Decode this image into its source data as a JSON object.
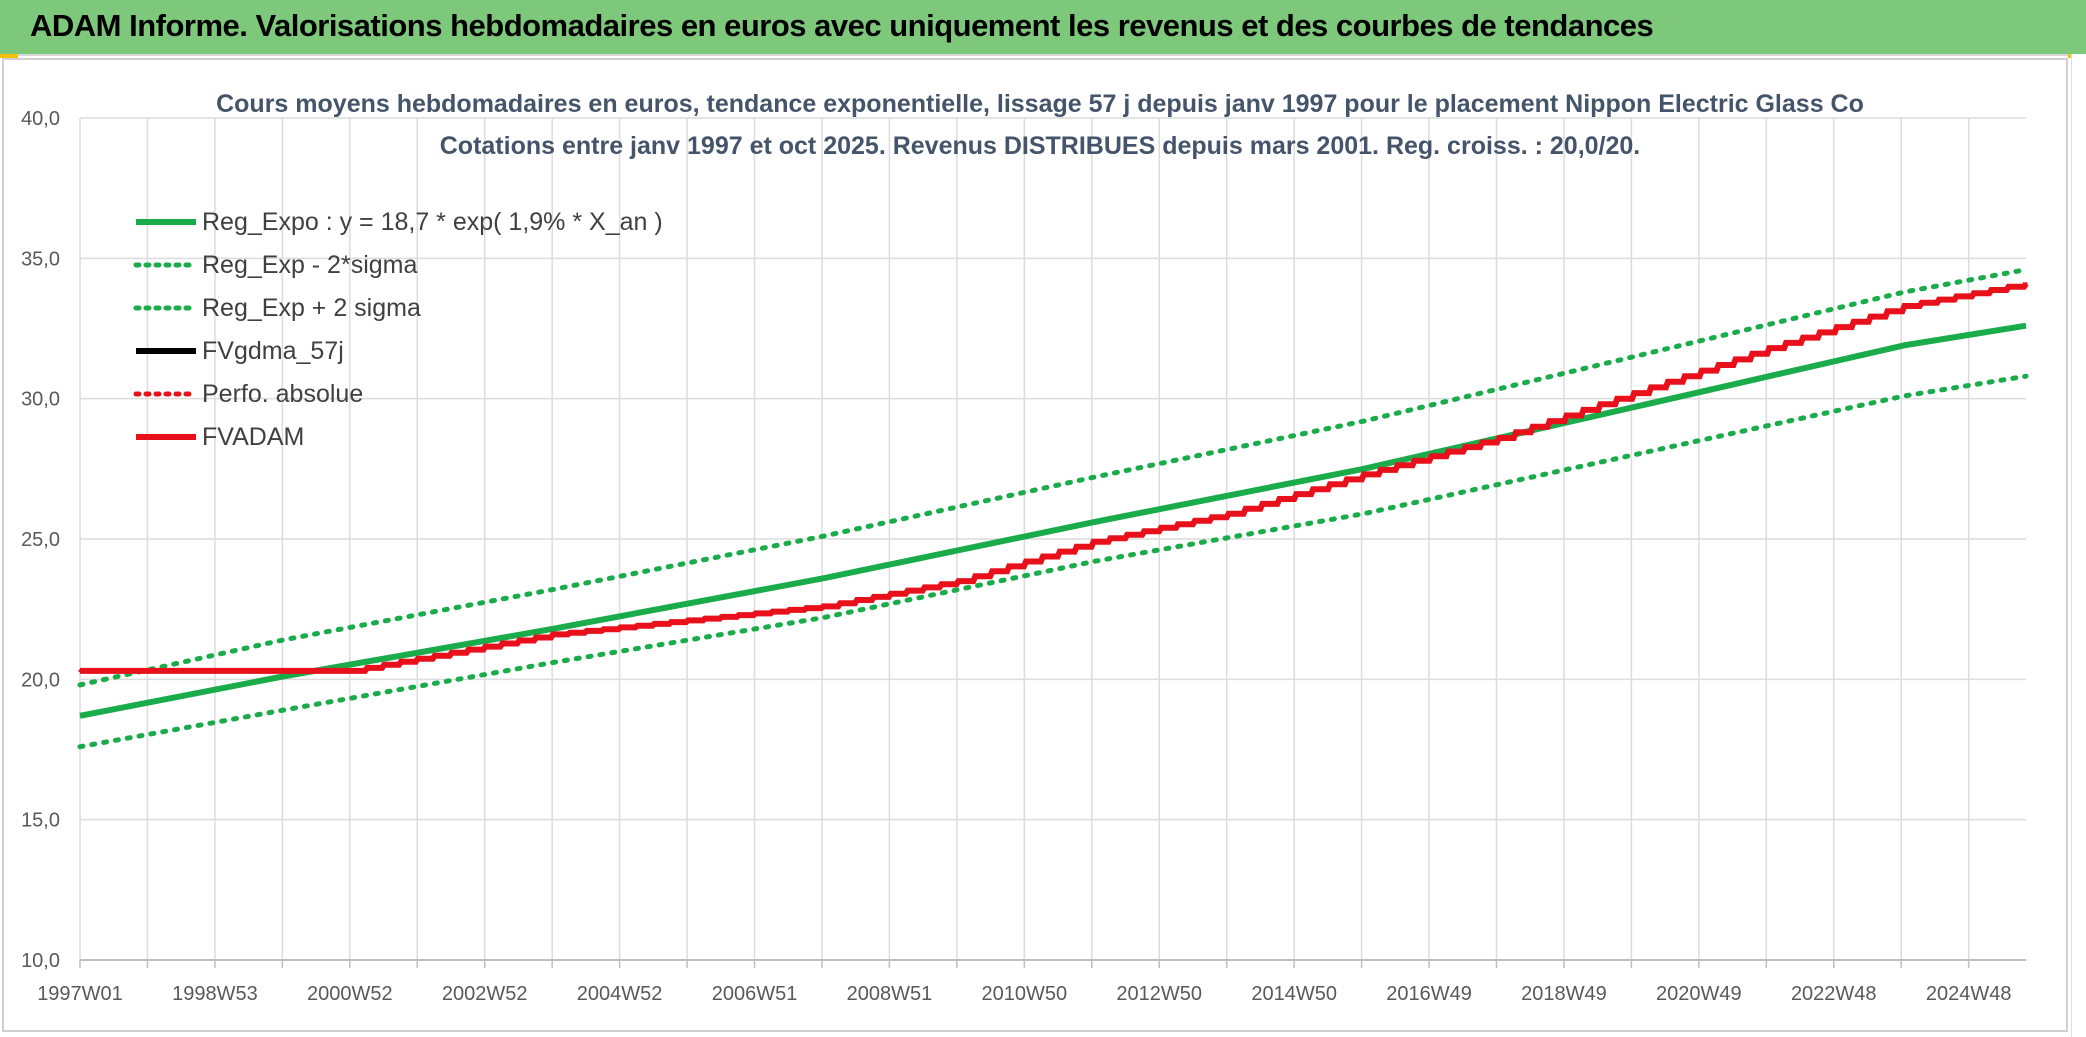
{
  "header": {
    "title": "ADAM Informe. Valorisations hebdomadaires en euros avec uniquement les revenus et des courbes de tendances"
  },
  "colors": {
    "header_bg": "#7dc87a",
    "green": "#1aab4b",
    "red": "#e8101a",
    "black": "#000000",
    "grid": "#dcdcdc",
    "title_text": "#44546a",
    "axis_text": "#595959"
  },
  "chart_data": {
    "type": "line",
    "title": "Cours moyens hebdomadaires en euros, tendance exponentielle, lissage 57 j depuis janv 1997 pour le placement Nippon Electric Glass Co",
    "subtitle": "Cotations entre janv 1997 et oct 2025. Revenus DISTRIBUES depuis mars 2001. Reg. croiss. : 20,0/20.",
    "xlabel": "",
    "ylabel": "",
    "ylim": [
      10,
      40
    ],
    "y_ticks": [
      "10,0",
      "15,0",
      "20,0",
      "25,0",
      "30,0",
      "35,0",
      "40,0"
    ],
    "x_range_years": [
      1997.0,
      2025.8
    ],
    "x_tick_labels": [
      "1997W01",
      "1998W53",
      "2000W52",
      "2002W52",
      "2004W52",
      "2006W51",
      "2008W51",
      "2010W50",
      "2012W50",
      "2014W50",
      "2016W49",
      "2018W49",
      "2020W49",
      "2022W48",
      "2024W48"
    ],
    "grid": true,
    "legend_position": "top-left",
    "legend": [
      {
        "label": "Reg_Expo : y = 18,7 * exp( 1,9% *  X_an )",
        "color": "#1aab4b",
        "style": "solid"
      },
      {
        "label": "Reg_Exp - 2*sigma",
        "color": "#1aab4b",
        "style": "dotted"
      },
      {
        "label": "Reg_Exp + 2 sigma",
        "color": "#1aab4b",
        "style": "dotted"
      },
      {
        "label": "FVgdma_57j",
        "color": "#000000",
        "style": "solid"
      },
      {
        "label": "Perfo. absolue",
        "color": "#e8101a",
        "style": "dotted"
      },
      {
        "label": "FVADAM",
        "color": "#e8101a",
        "style": "solid"
      }
    ],
    "series": [
      {
        "name": "Reg_Expo : y = 18,7 * exp( 1,9% *  X_an )",
        "x": [
          1997,
          2000,
          2004,
          2008,
          2012,
          2016,
          2020,
          2024,
          2025.8
        ],
        "y": [
          18.7,
          20.1,
          21.8,
          23.6,
          25.6,
          27.5,
          29.7,
          31.9,
          32.6
        ]
      },
      {
        "name": "Reg_Exp - 2*sigma",
        "x": [
          1997,
          2000,
          2004,
          2008,
          2012,
          2016,
          2020,
          2024,
          2025.8
        ],
        "y": [
          17.6,
          18.9,
          20.6,
          22.2,
          24.2,
          25.9,
          28.0,
          30.1,
          30.8
        ]
      },
      {
        "name": "Reg_Exp + 2 sigma",
        "x": [
          1997,
          2000,
          2004,
          2008,
          2012,
          2016,
          2020,
          2024,
          2025.8
        ],
        "y": [
          19.8,
          21.4,
          23.2,
          25.1,
          27.2,
          29.2,
          31.5,
          33.8,
          34.6
        ]
      },
      {
        "name": "FVgdma_57j",
        "x": [
          1997,
          2001.0,
          2004,
          2008,
          2010,
          2012,
          2014,
          2016,
          2018,
          2020,
          2022,
          2024,
          2025.8
        ],
        "y": [
          20.3,
          20.3,
          21.6,
          22.6,
          23.5,
          24.9,
          25.9,
          27.3,
          28.6,
          30.2,
          31.8,
          33.3,
          34.1
        ]
      },
      {
        "name": "Perfo. absolue",
        "x": [
          1997,
          2001.0,
          2004,
          2008,
          2010,
          2012,
          2014,
          2016,
          2018,
          2020,
          2022,
          2024,
          2025.8
        ],
        "y": [
          20.3,
          20.3,
          21.6,
          22.6,
          23.5,
          24.9,
          25.9,
          27.3,
          28.6,
          30.2,
          31.8,
          33.3,
          34.1
        ]
      },
      {
        "name": "FVADAM",
        "x": [
          1997,
          2001.0,
          2004,
          2008,
          2010,
          2012,
          2014,
          2016,
          2018,
          2020,
          2022,
          2024,
          2025.8
        ],
        "y": [
          20.3,
          20.3,
          21.6,
          22.6,
          23.5,
          24.9,
          25.9,
          27.3,
          28.6,
          30.2,
          31.8,
          33.3,
          34.1
        ]
      }
    ]
  }
}
